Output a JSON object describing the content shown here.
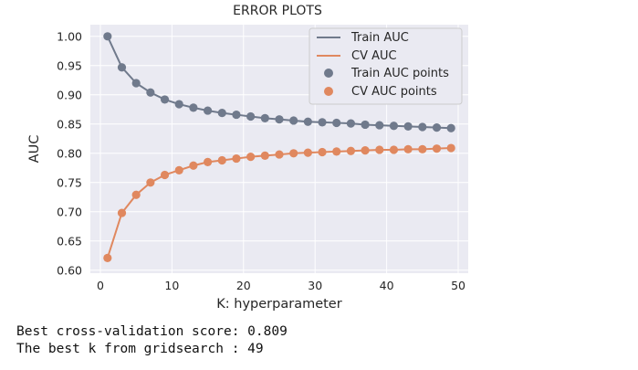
{
  "chart_data": {
    "type": "line",
    "title": "ERROR PLOTS",
    "xlabel": "K: hyperparameter",
    "ylabel": "AUC",
    "xlim": [
      -1.4,
      51.4
    ],
    "ylim": [
      0.595,
      1.02
    ],
    "xticks": [
      "0",
      "10",
      "20",
      "30",
      "40",
      "50"
    ],
    "yticks": [
      "0.60",
      "0.65",
      "0.70",
      "0.75",
      "0.80",
      "0.85",
      "0.90",
      "0.95",
      "1.00"
    ],
    "grid": true,
    "legend_position": "top-right",
    "legend": [
      "Train AUC",
      "CV AUC",
      "Train AUC points",
      "CV AUC points"
    ],
    "x": [
      1,
      3,
      5,
      7,
      9,
      11,
      13,
      15,
      17,
      19,
      21,
      23,
      25,
      27,
      29,
      31,
      33,
      35,
      37,
      39,
      41,
      43,
      45,
      47,
      49
    ],
    "series": [
      {
        "name": "Train AUC",
        "color": "#707a8c",
        "values": [
          1.0,
          0.947,
          0.92,
          0.904,
          0.892,
          0.884,
          0.878,
          0.873,
          0.869,
          0.866,
          0.863,
          0.86,
          0.858,
          0.856,
          0.854,
          0.853,
          0.852,
          0.851,
          0.849,
          0.848,
          0.847,
          0.846,
          0.845,
          0.844,
          0.843
        ]
      },
      {
        "name": "CV AUC",
        "color": "#e0885f",
        "values": [
          0.621,
          0.698,
          0.729,
          0.75,
          0.763,
          0.771,
          0.779,
          0.785,
          0.788,
          0.791,
          0.794,
          0.796,
          0.798,
          0.8,
          0.801,
          0.802,
          0.803,
          0.804,
          0.805,
          0.806,
          0.806,
          0.807,
          0.807,
          0.808,
          0.809
        ]
      }
    ]
  },
  "console": {
    "line1": "Best cross-validation score: 0.809",
    "line2": "The best k from gridsearch : 49"
  }
}
